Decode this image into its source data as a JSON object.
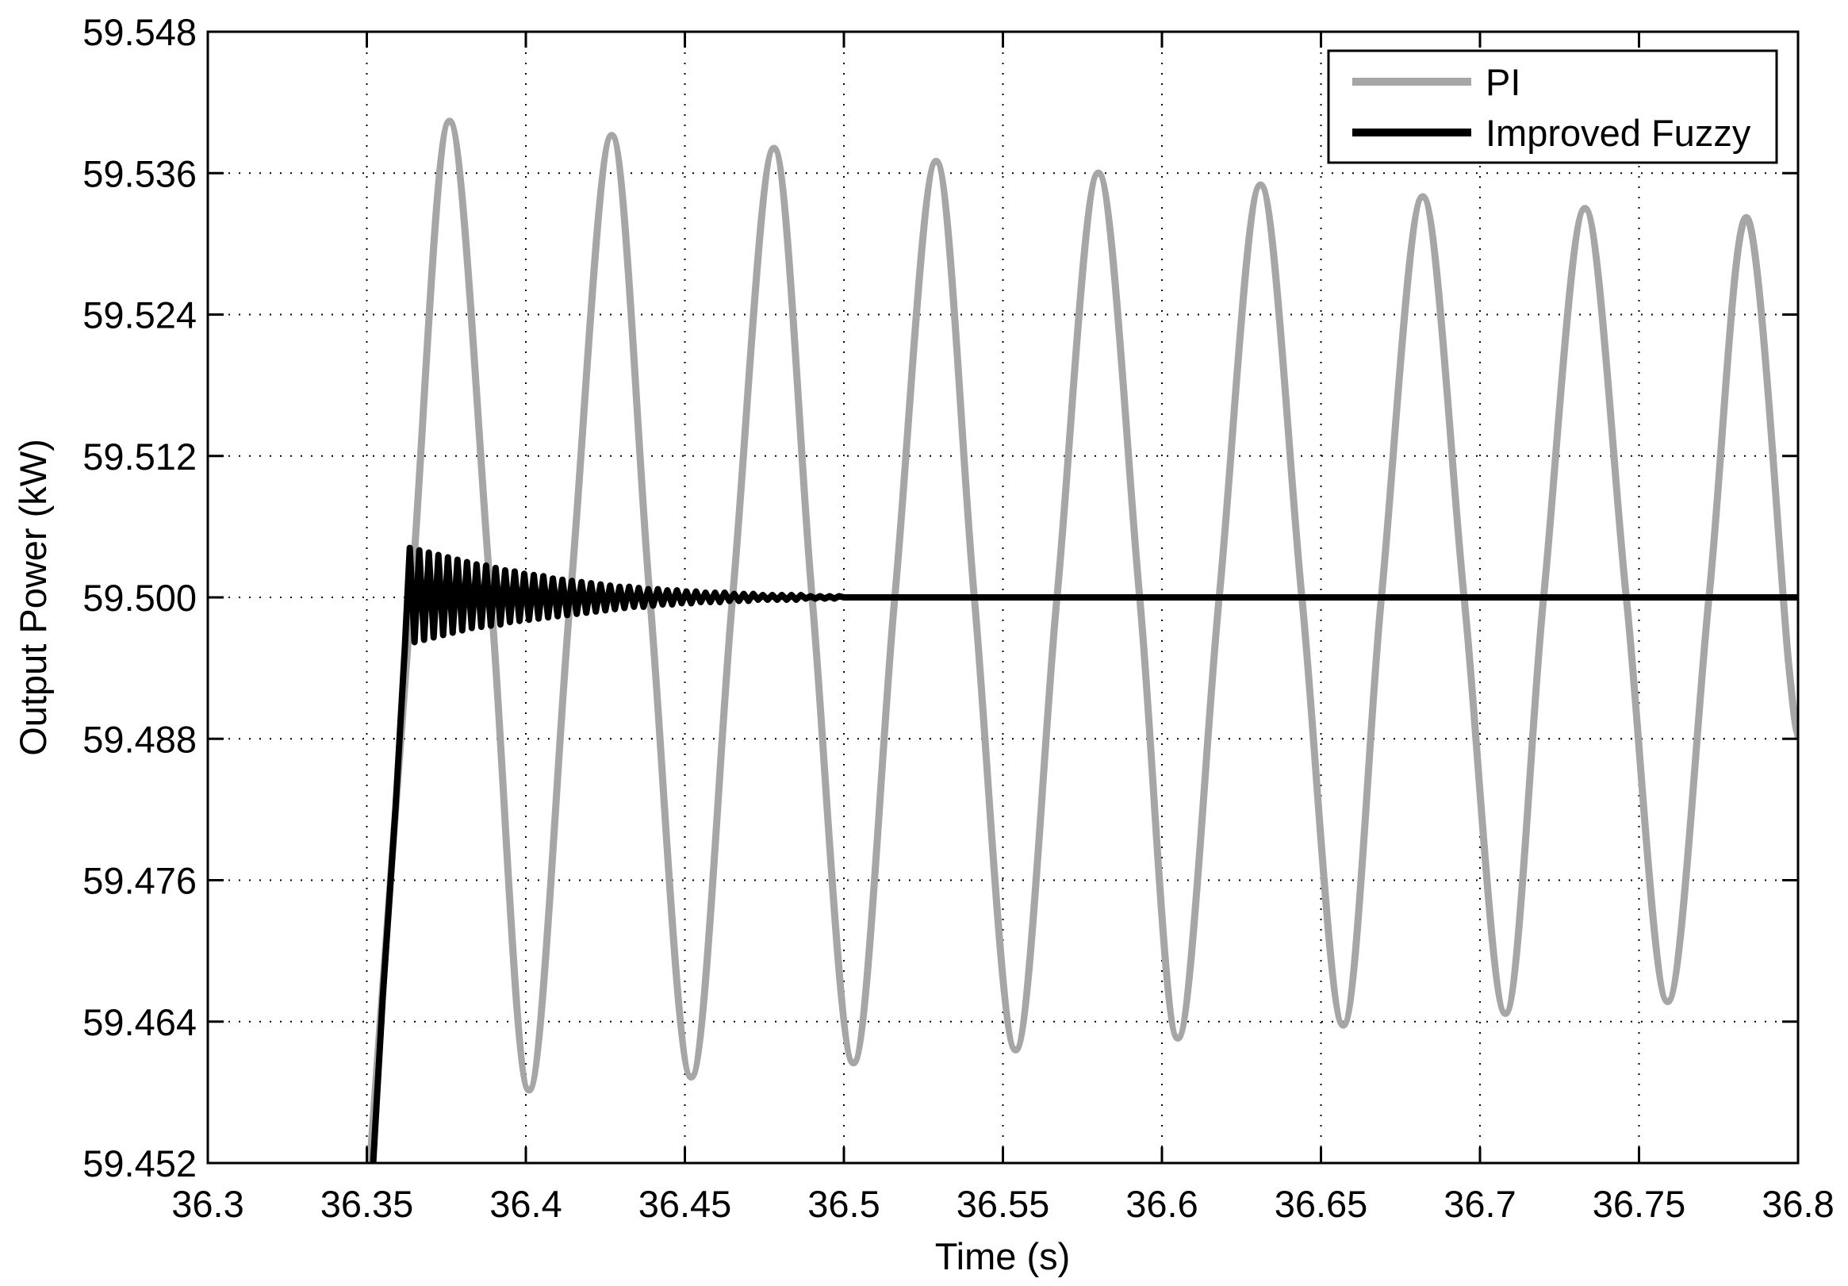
{
  "chart_data": {
    "type": "line",
    "title": "",
    "xlabel": "Time (s)",
    "ylabel": "Output Power (kW)",
    "xlim": [
      36.3,
      36.8
    ],
    "ylim": [
      59.452,
      59.548
    ],
    "xticks": [
      36.3,
      36.35,
      36.4,
      36.45,
      36.5,
      36.55,
      36.6,
      36.65,
      36.7,
      36.75,
      36.8
    ],
    "xtick_labels": [
      "36.3",
      "36.35",
      "36.4",
      "36.45",
      "36.5",
      "36.55",
      "36.6",
      "36.65",
      "36.7",
      "36.75",
      "36.8"
    ],
    "yticks": [
      59.452,
      59.464,
      59.476,
      59.488,
      59.5,
      59.512,
      59.524,
      59.536,
      59.548
    ],
    "ytick_labels": [
      "59.452",
      "59.464",
      "59.476",
      "59.488",
      "59.500",
      "59.512",
      "59.524",
      "59.536",
      "59.548"
    ],
    "grid": true,
    "legend_position": "top-right",
    "series": [
      {
        "name": "PI",
        "color": "#a6a6a6",
        "x": [
          36.351,
          36.364,
          36.376,
          36.389,
          36.401,
          36.414,
          36.427,
          36.439,
          36.452,
          36.465,
          36.478,
          36.49,
          36.503,
          36.516,
          36.529,
          36.541,
          36.554,
          36.567,
          36.58,
          36.593,
          36.605,
          36.618,
          36.631,
          36.644,
          36.657,
          36.669,
          36.682,
          36.695,
          36.708,
          36.72,
          36.733,
          36.746,
          36.759,
          36.772,
          36.784,
          36.797,
          36.8
        ],
        "y": [
          59.452,
          59.5,
          59.5404,
          59.5,
          59.4582,
          59.5,
          59.5392,
          59.5,
          59.4593,
          59.5,
          59.5381,
          59.5,
          59.4605,
          59.5,
          59.537,
          59.5,
          59.4616,
          59.5,
          59.536,
          59.5,
          59.4626,
          59.5,
          59.535,
          59.5,
          59.4637,
          59.5,
          59.534,
          59.5,
          59.4647,
          59.5,
          59.533,
          59.5,
          59.4657,
          59.5,
          59.5322,
          59.4945,
          59.4882
        ]
      },
      {
        "name": "Improved Fuzzy",
        "color": "#000000",
        "x": [
          36.352,
          36.355,
          36.359,
          36.362,
          36.3635,
          36.365,
          36.3665,
          36.368,
          36.3695,
          36.371,
          36.3725,
          36.374,
          36.3755,
          36.377,
          36.3785,
          36.38,
          36.3815,
          36.383,
          36.3845,
          36.386,
          36.3875,
          36.389,
          36.3905,
          36.392,
          36.3935,
          36.395,
          36.3965,
          36.398,
          36.3995,
          36.401,
          36.4025,
          36.404,
          36.4055,
          36.407,
          36.4085,
          36.41,
          36.4115,
          36.413,
          36.4145,
          36.416,
          36.4175,
          36.419,
          36.4205,
          36.422,
          36.4235,
          36.425,
          36.4265,
          36.428,
          36.4295,
          36.431,
          36.4325,
          36.434,
          36.4355,
          36.437,
          36.4385,
          36.44,
          36.4415,
          36.443,
          36.4445,
          36.446,
          36.4475,
          36.449,
          36.4505,
          36.452,
          36.4535,
          36.455,
          36.4565,
          36.458,
          36.4595,
          36.461,
          36.4625,
          36.464,
          36.4655,
          36.467,
          36.4685,
          36.47,
          36.4715,
          36.473,
          36.4745,
          36.476,
          36.4775,
          36.479,
          36.4805,
          36.482,
          36.4835,
          36.485,
          36.4865,
          36.488,
          36.4895,
          36.491,
          36.4925,
          36.494,
          36.4955,
          36.497,
          36.4985,
          36.5,
          36.55,
          36.6,
          36.65,
          36.7,
          36.75,
          36.8
        ],
        "y": [
          59.452,
          59.466,
          59.482,
          59.496,
          59.5042,
          59.4962,
          59.504,
          59.4964,
          59.5038,
          59.4966,
          59.5036,
          59.4968,
          59.5034,
          59.497,
          59.5032,
          59.4972,
          59.503,
          59.4974,
          59.5028,
          59.4975,
          59.5027,
          59.4976,
          59.5025,
          59.4977,
          59.5023,
          59.4979,
          59.5022,
          59.498,
          59.502,
          59.4981,
          59.5019,
          59.4982,
          59.5018,
          59.4983,
          59.5016,
          59.4984,
          59.5015,
          59.4985,
          59.5014,
          59.4986,
          59.5013,
          59.4987,
          59.5012,
          59.4988,
          59.5011,
          59.4989,
          59.501,
          59.499,
          59.5009,
          59.4991,
          59.5009,
          59.4992,
          59.5008,
          59.4992,
          59.5007,
          59.4993,
          59.5007,
          59.4994,
          59.5006,
          59.4994,
          59.5006,
          59.4995,
          59.5005,
          59.4995,
          59.5005,
          59.4996,
          59.5004,
          59.4996,
          59.5004,
          59.4996,
          59.5004,
          59.4997,
          59.5003,
          59.4997,
          59.5003,
          59.4997,
          59.5003,
          59.4998,
          59.5002,
          59.4998,
          59.5002,
          59.4998,
          59.5002,
          59.4998,
          59.5002,
          59.4998,
          59.5002,
          59.4999,
          59.5001,
          59.4999,
          59.5001,
          59.4999,
          59.5001,
          59.4999,
          59.5001,
          59.5,
          59.5,
          59.5,
          59.5,
          59.5,
          59.5,
          59.5
        ]
      }
    ]
  }
}
